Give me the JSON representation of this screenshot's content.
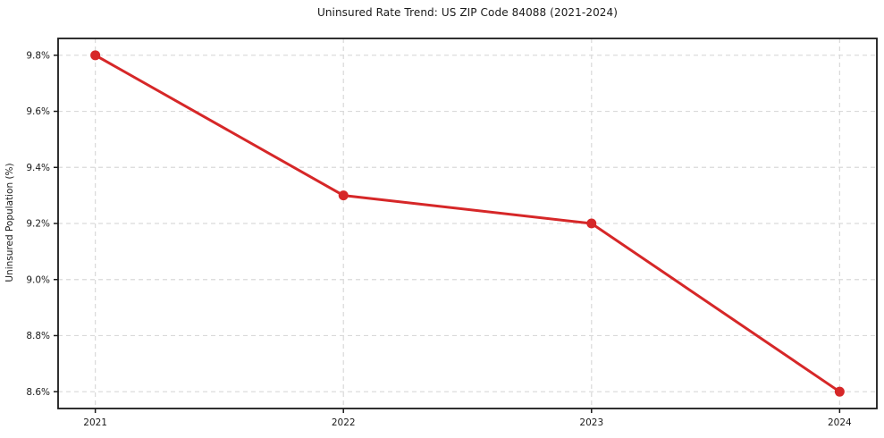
{
  "chart_data": {
    "type": "line",
    "title": "Uninsured Rate Trend: US ZIP Code 84088 (2021-2024)",
    "xlabel": "",
    "ylabel": "Uninsured Population (%)",
    "x": [
      2021,
      2022,
      2023,
      2024
    ],
    "x_tick_labels": [
      "2021",
      "2022",
      "2023",
      "2024"
    ],
    "values": [
      9.8,
      9.3,
      9.2,
      8.6
    ],
    "y_ticks": [
      8.6,
      8.8,
      9.0,
      9.2,
      9.4,
      9.6,
      9.8
    ],
    "y_tick_labels": [
      "8.6%",
      "8.8%",
      "9.0%",
      "9.2%",
      "9.4%",
      "9.6%",
      "9.8%"
    ],
    "xlim": [
      2020.85,
      2024.15
    ],
    "ylim": [
      8.54,
      9.86
    ],
    "grid": true,
    "grid_style": "dashed",
    "legend": "none",
    "colors": {
      "line": "#d62728",
      "marker": "#d62728",
      "grid": "#d9d9d9",
      "axis_border": "#1a1a1a",
      "text": "#1a1a1a",
      "background": "#ffffff"
    }
  }
}
